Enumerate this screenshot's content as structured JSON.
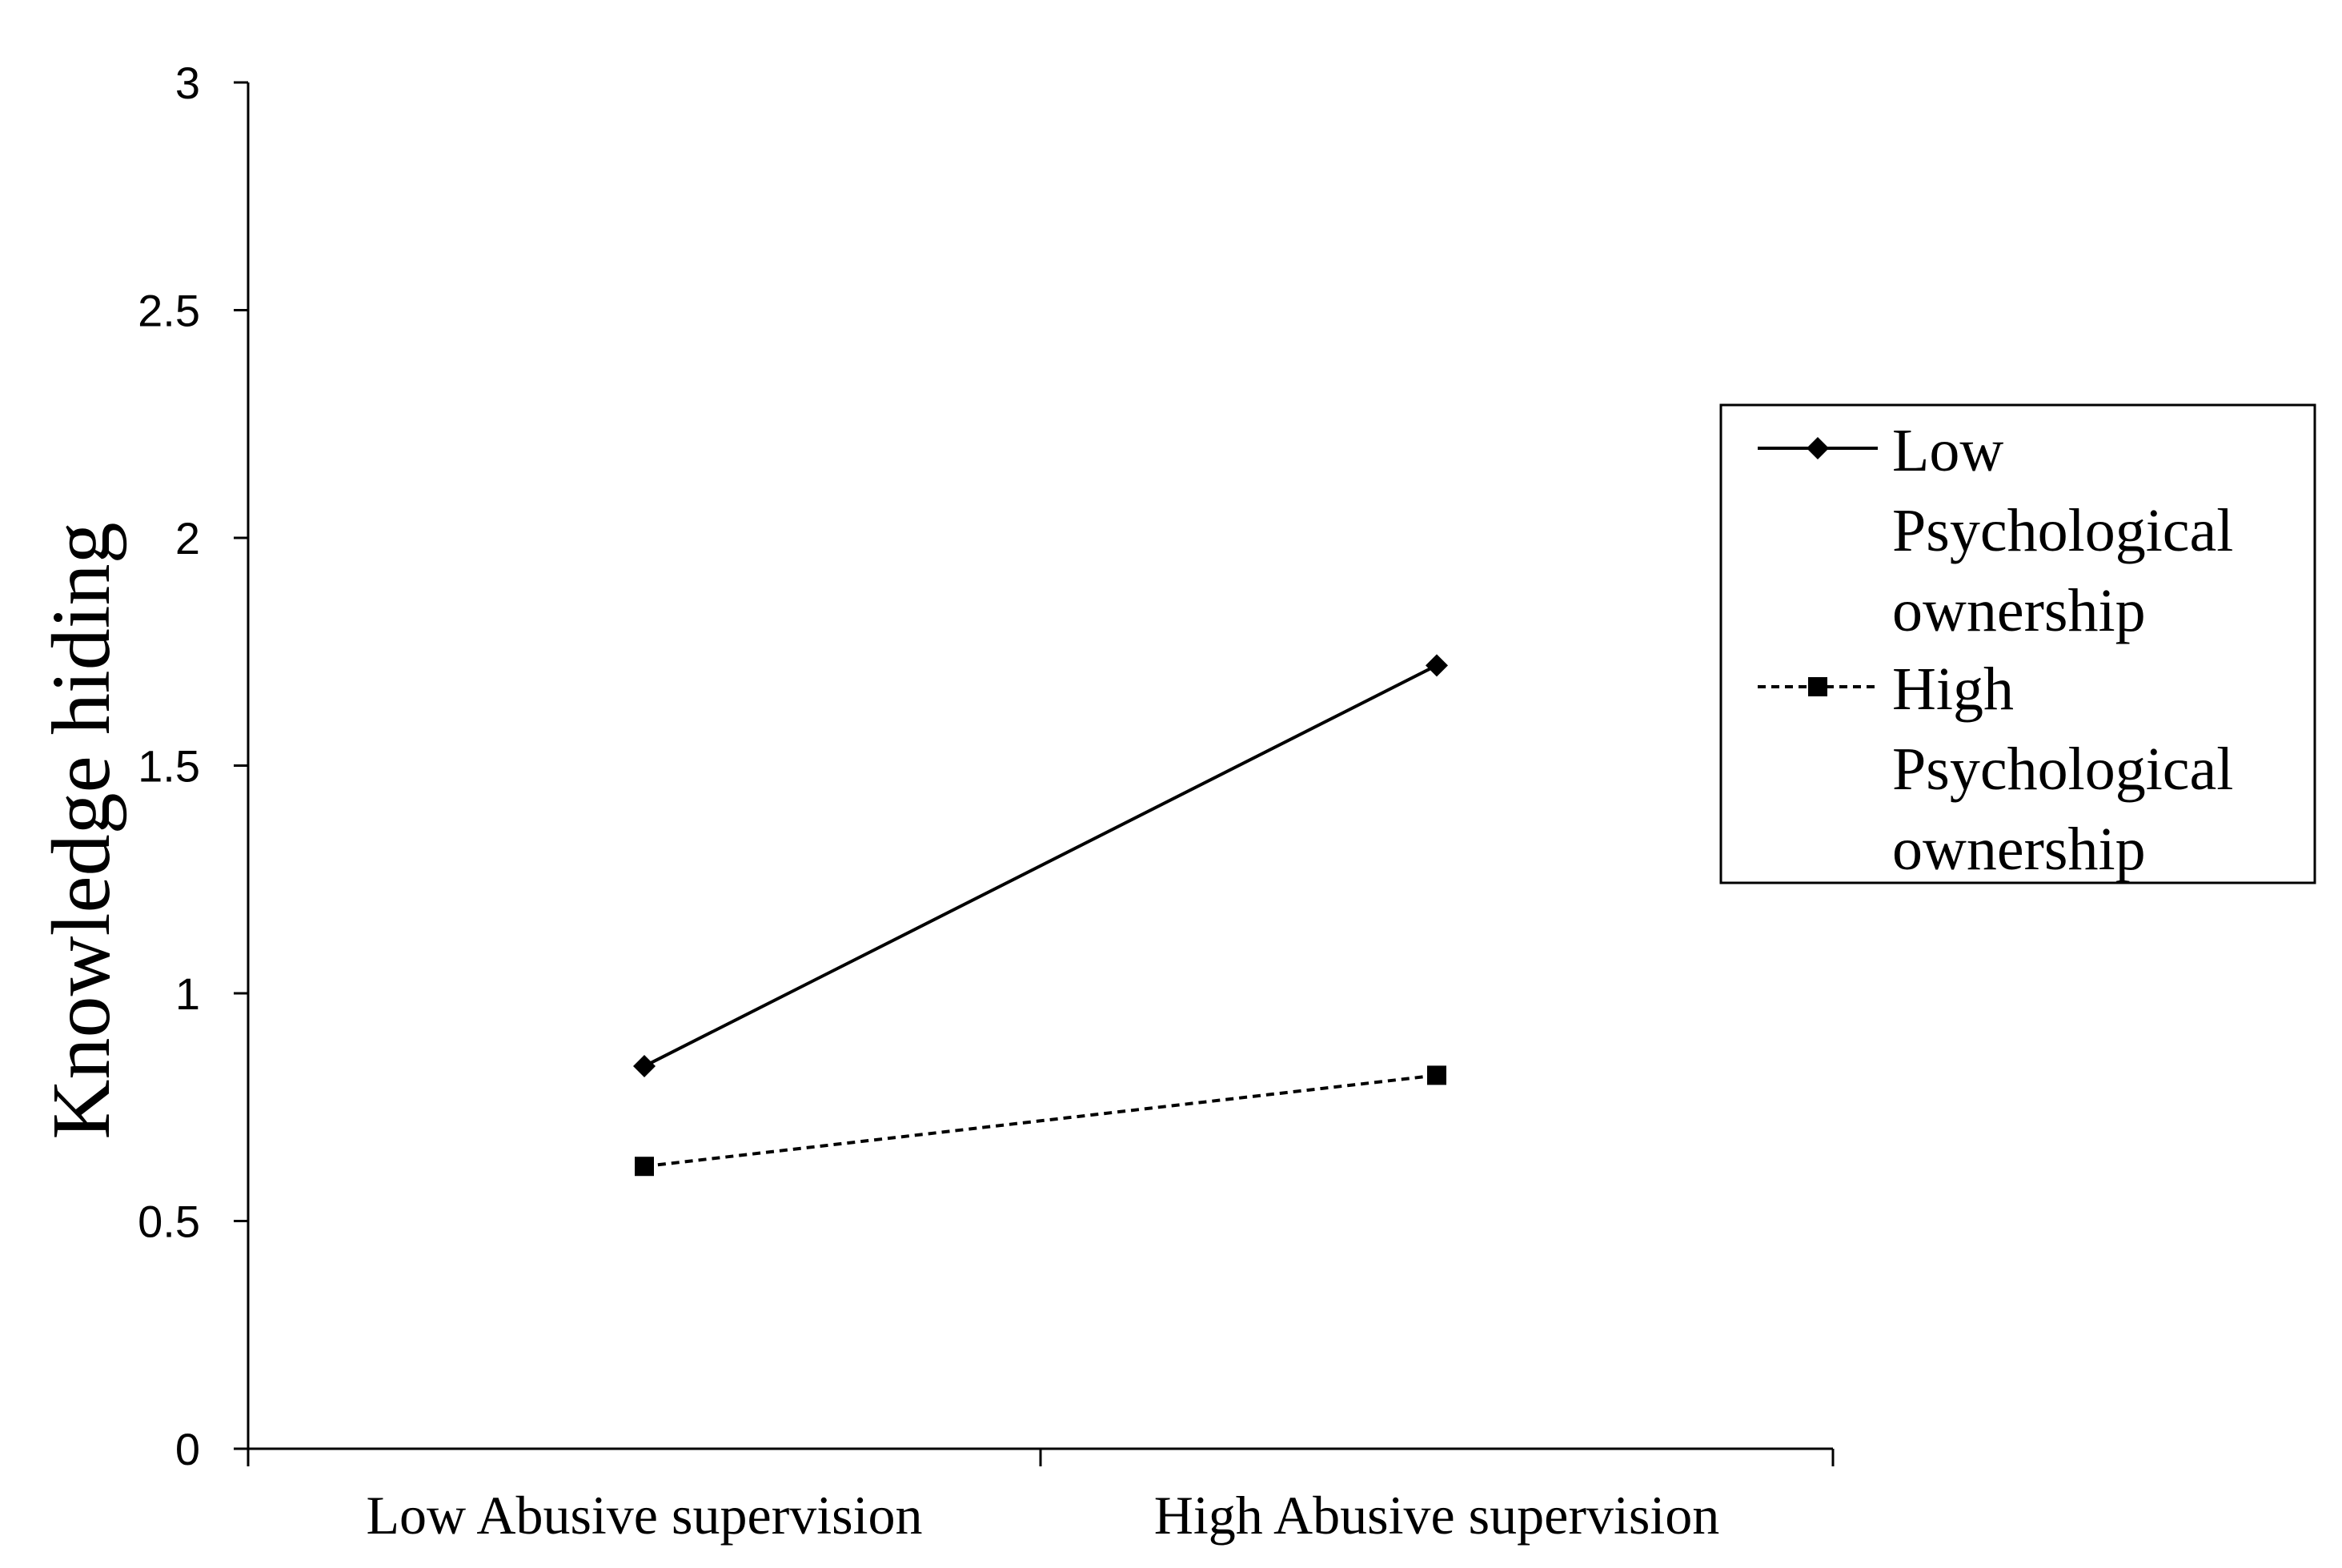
{
  "chart_data": {
    "type": "line",
    "title": "",
    "xlabel": "",
    "ylabel": "Knowledge hiding",
    "categories": [
      "Low Abusive supervision",
      "High Abusive supervision"
    ],
    "ylim": [
      0,
      3
    ],
    "yticks": [
      "0",
      "0.5",
      "1",
      "1.5",
      "2",
      "2.5",
      "3"
    ],
    "grid": false,
    "legend_position": "right",
    "series": [
      {
        "name": "Low Psychological ownership",
        "name_lines": [
          "Low",
          "Psychological",
          "ownership"
        ],
        "values": [
          0.84,
          1.72
        ],
        "marker": "diamond",
        "line_style": "solid",
        "color": "#000000"
      },
      {
        "name": "High Psychological ownership",
        "name_lines": [
          "High",
          "Psychological",
          "ownership"
        ],
        "values": [
          0.62,
          0.82
        ],
        "marker": "square",
        "line_style": "dashed",
        "color": "#000000"
      }
    ]
  }
}
